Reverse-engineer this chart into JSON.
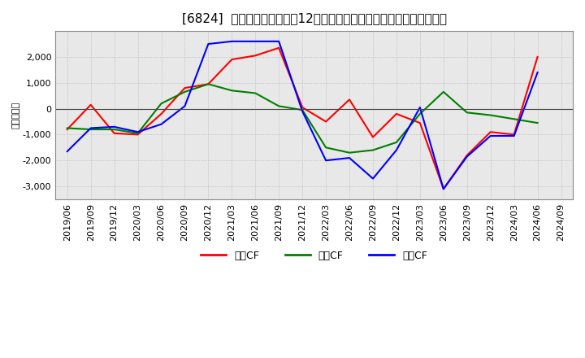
{
  "title": "[6824]  キャッシュフローの12か月移動合計の対前年同期増減額の推移",
  "ylabel": "（百万円）",
  "dates": [
    "2019/06",
    "2019/09",
    "2019/12",
    "2020/03",
    "2020/06",
    "2020/09",
    "2020/12",
    "2021/03",
    "2021/06",
    "2021/09",
    "2021/12",
    "2022/03",
    "2022/06",
    "2022/09",
    "2022/12",
    "2023/03",
    "2023/06",
    "2023/09",
    "2023/12",
    "2024/03",
    "2024/06",
    "2024/09"
  ],
  "eigyo_cf": [
    -800,
    150,
    -950,
    -1000,
    -200,
    800,
    950,
    1900,
    2050,
    2350,
    50,
    -500,
    350,
    -1100,
    -200,
    -550,
    -3100,
    -1800,
    -900,
    -1000,
    2000,
    null
  ],
  "toshi_cf": [
    -750,
    -800,
    -800,
    -950,
    200,
    650,
    950,
    700,
    600,
    100,
    -50,
    -1500,
    -1700,
    -1600,
    -1300,
    -200,
    650,
    -150,
    -250,
    -400,
    -550,
    null
  ],
  "free_cf": [
    -1650,
    -750,
    -700,
    -900,
    -600,
    100,
    2500,
    2600,
    2600,
    2600,
    -100,
    -2000,
    -1900,
    -2700,
    -1600,
    50,
    -3100,
    -1850,
    -1050,
    -1050,
    1400,
    null
  ],
  "eigyo_color": "#ff0000",
  "toshi_color": "#008000",
  "free_color": "#0000ff",
  "bg_color": "#ffffff",
  "plot_bg_color": "#e8e8e8",
  "ylim": [
    -3500,
    3000
  ],
  "yticks": [
    -3000,
    -2000,
    -1000,
    0,
    1000,
    2000
  ],
  "legend_labels": [
    "営業CF",
    "投資CF",
    "フリCF"
  ]
}
